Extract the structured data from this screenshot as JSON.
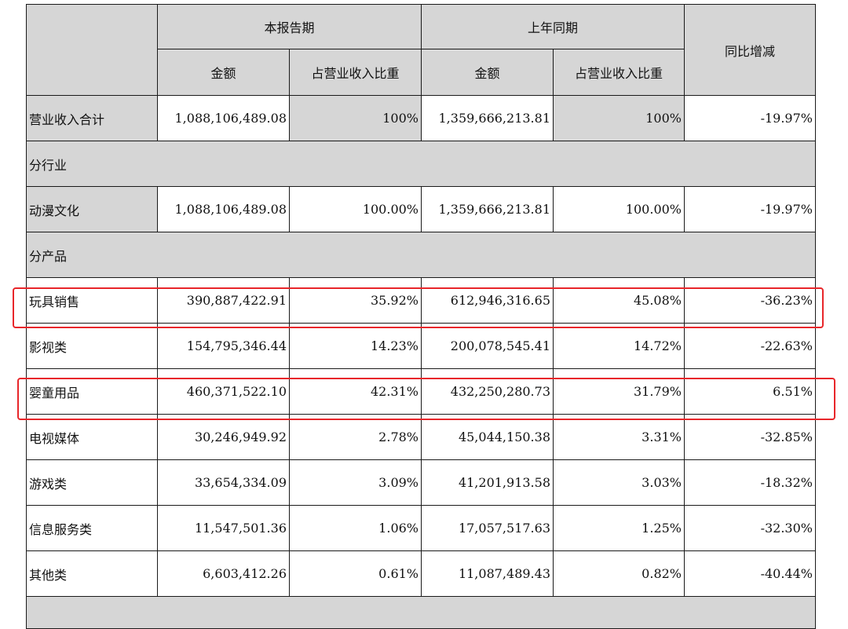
{
  "header": {
    "current_period": "本报告期",
    "prior_period": "上年同期",
    "yoy_change": "同比增减",
    "amount": "金额",
    "share_of_revenue": "占营业收入比重"
  },
  "total_row": {
    "label": "营业收入合计",
    "current_amount": "1,088,106,489.08",
    "current_share": "100%",
    "prior_amount": "1,359,666,213.81",
    "prior_share": "100%",
    "change": "-19.97%"
  },
  "section_industry": "分行业",
  "industry_rows": [
    {
      "label": "动漫文化",
      "current_amount": "1,088,106,489.08",
      "current_share": "100.00%",
      "prior_amount": "1,359,666,213.81",
      "prior_share": "100.00%",
      "change": "-19.97%"
    }
  ],
  "section_product": "分产品",
  "product_rows": [
    {
      "label": "玩具销售",
      "current_amount": "390,887,422.91",
      "current_share": "35.92%",
      "prior_amount": "612,946,316.65",
      "prior_share": "45.08%",
      "change": "-36.23%"
    },
    {
      "label": "影视类",
      "current_amount": "154,795,346.44",
      "current_share": "14.23%",
      "prior_amount": "200,078,545.41",
      "prior_share": "14.72%",
      "change": "-22.63%"
    },
    {
      "label": "婴童用品",
      "current_amount": "460,371,522.10",
      "current_share": "42.31%",
      "prior_amount": "432,250,280.73",
      "prior_share": "31.79%",
      "change": "6.51%"
    },
    {
      "label": "电视媒体",
      "current_amount": "30,246,949.92",
      "current_share": "2.78%",
      "prior_amount": "45,044,150.38",
      "prior_share": "3.31%",
      "change": "-32.85%"
    },
    {
      "label": "游戏类",
      "current_amount": "33,654,334.09",
      "current_share": "3.09%",
      "prior_amount": "41,201,913.58",
      "prior_share": "3.03%",
      "change": "-18.32%"
    },
    {
      "label": "信息服务类",
      "current_amount": "11,547,501.36",
      "current_share": "1.06%",
      "prior_amount": "17,057,517.63",
      "prior_share": "1.25%",
      "change": "-32.30%"
    },
    {
      "label": "其他类",
      "current_amount": "6,603,412.26",
      "current_share": "0.61%",
      "prior_amount": "11,087,489.43",
      "prior_share": "0.82%",
      "change": "-40.44%"
    }
  ],
  "highlight_color": "#e8262a",
  "header_fill": "#d6d6d6"
}
